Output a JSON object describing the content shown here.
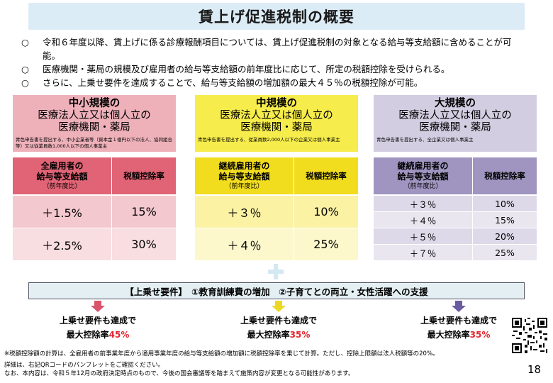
{
  "title": "賃上げ促進税制の概要",
  "bullets": [
    {
      "mark": "○",
      "text": "令和６年度以降、賃上げに係る診療報酬項目については、賃上げ促進税制の対象となる給与等支給額に含めることが可能。"
    },
    {
      "mark": "○",
      "text": "医療機関・薬局の規模及び雇用者の給与等支給額の前年度比に応じて、所定の税額控除を受けられる。"
    },
    {
      "mark": "○",
      "text": "さらに、上乗せ要件を達成することで、給与等支給額の増加額の最大４５％の税額控除が可能。"
    }
  ],
  "columns": [
    {
      "head_bold": "中小規模の",
      "head_sub": "医療法人立又は個人立の\n医療機関・薬局",
      "note": "青色申告書を提出する、中小企業者等（資本金１億円以下の法人、協同組合等）又は従業員数1,000人以下の個人事業主",
      "th1_l1": "全雇用者の",
      "th1_l2": "給与等支給額",
      "th1_l3": "（前年度比）",
      "th2": "税額控除率",
      "rows": [
        {
          "growth": "＋1.5%",
          "rate": "15%"
        },
        {
          "growth": "＋2.5%",
          "rate": "30%"
        }
      ],
      "colors": {
        "head_bg": "#eeb1ba",
        "th_bg": "#e06476",
        "row_bg_a": "#f4c8cf",
        "row_bg_b": "#f8dde1"
      }
    },
    {
      "head_bold": "中規模の",
      "head_sub": "医療法人立又は個人立の\n医療機関・薬局",
      "note": "青色申告書を提出する、従業員数2,000人以下の企業又は個人事業主",
      "th1_l1": "継続雇用者の",
      "th1_l2": "給与等支給額",
      "th1_l3": "（前年度比）",
      "th2": "税額控除率",
      "rows": [
        {
          "growth": "＋３％",
          "rate": "10%"
        },
        {
          "growth": "＋４％",
          "rate": "25%"
        }
      ],
      "colors": {
        "head_bg": "#f6ec4c",
        "th_bg": "#f1dc1e",
        "row_bg_a": "#fbf2a4",
        "row_bg_b": "#fdf7cc"
      }
    },
    {
      "head_bold": "大規模の",
      "head_sub": "医療法人立又は個人立の\n医療機関・薬局",
      "note": "青色申告書を提出する、全企業又は個人事業主",
      "th1_l1": "継続雇用者の",
      "th1_l2": "給与等支給額",
      "th1_l3": "（前年度比）",
      "th2": "税額控除率",
      "rows": [
        {
          "growth": "＋３％",
          "rate": "10%"
        },
        {
          "growth": "＋４％",
          "rate": "15%"
        },
        {
          "growth": "＋５％",
          "rate": "20%"
        },
        {
          "growth": "＋７％",
          "rate": "25%"
        }
      ],
      "colors": {
        "head_bg": "#d2cde0",
        "th_bg": "#9f95c0",
        "row_bg_a": "#ddd9e8",
        "row_bg_b": "#e9e6f0"
      }
    }
  ],
  "requirement": "【上乗せ要件】　①教育訓練費の増加　②子育てとの両立・女性活躍への支援",
  "max_results": [
    {
      "line1": "上乗せ要件も達成で",
      "line2_prefix": "最大控除率",
      "rate": "45%",
      "arrow_color": "#d9546a"
    },
    {
      "line1": "上乗せ要件も達成で",
      "line2_prefix": "最大控除率",
      "rate": "35%",
      "arrow_color": "#ecd824"
    },
    {
      "line1": "上乗せ要件も達成で",
      "line2_prefix": "最大控除率",
      "rate": "35%",
      "arrow_color": "#6a5c9e"
    }
  ],
  "footnotes": [
    "※税額控除額の計算は、全雇用者の前事業年度から適用事業年度の給与等支給額の増加額に税額控除率を乗じて計算。ただし、控除上限額は法人税額等の20%。",
    "詳細は、右記QRコードのパンフレットをご確認ください。",
    "なお、本内容は、令和５年12月の政府決定時点のもので、今後の国会審議等を踏まえて施策内容が変更となる可能性があります。"
  ],
  "page_number": "18",
  "icons": {
    "qr": "qr-code-icon",
    "plus": "plus-icon"
  }
}
